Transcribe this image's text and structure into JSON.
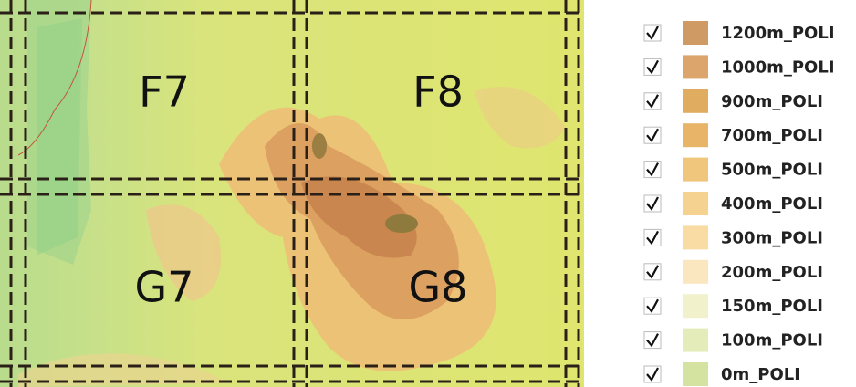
{
  "map": {
    "cells": [
      {
        "label": "F7"
      },
      {
        "label": "F8"
      },
      {
        "label": "G7"
      },
      {
        "label": "G8"
      }
    ]
  },
  "legend": {
    "items": [
      {
        "label": "1200m_POLI",
        "color": "#cf9a64",
        "checked": true
      },
      {
        "label": "1000m_POLI",
        "color": "#dba56c",
        "checked": true
      },
      {
        "label": "900m_POLI",
        "color": "#e0ac60",
        "checked": true
      },
      {
        "label": "700m_POLI",
        "color": "#e8b468",
        "checked": true
      },
      {
        "label": "500m_POLI",
        "color": "#f0c57c",
        "checked": true
      },
      {
        "label": "400m_POLI",
        "color": "#f5d290",
        "checked": true
      },
      {
        "label": "300m_POLI",
        "color": "#f8dca4",
        "checked": true
      },
      {
        "label": "200m_POLI",
        "color": "#fae6bf",
        "checked": true
      },
      {
        "label": "150m_POLI",
        "color": "#f1f2cc",
        "checked": true
      },
      {
        "label": "100m_POLI",
        "color": "#e4ecba",
        "checked": true
      },
      {
        "label": "0m_POLI",
        "color": "#d4e3a0",
        "checked": true
      }
    ]
  }
}
